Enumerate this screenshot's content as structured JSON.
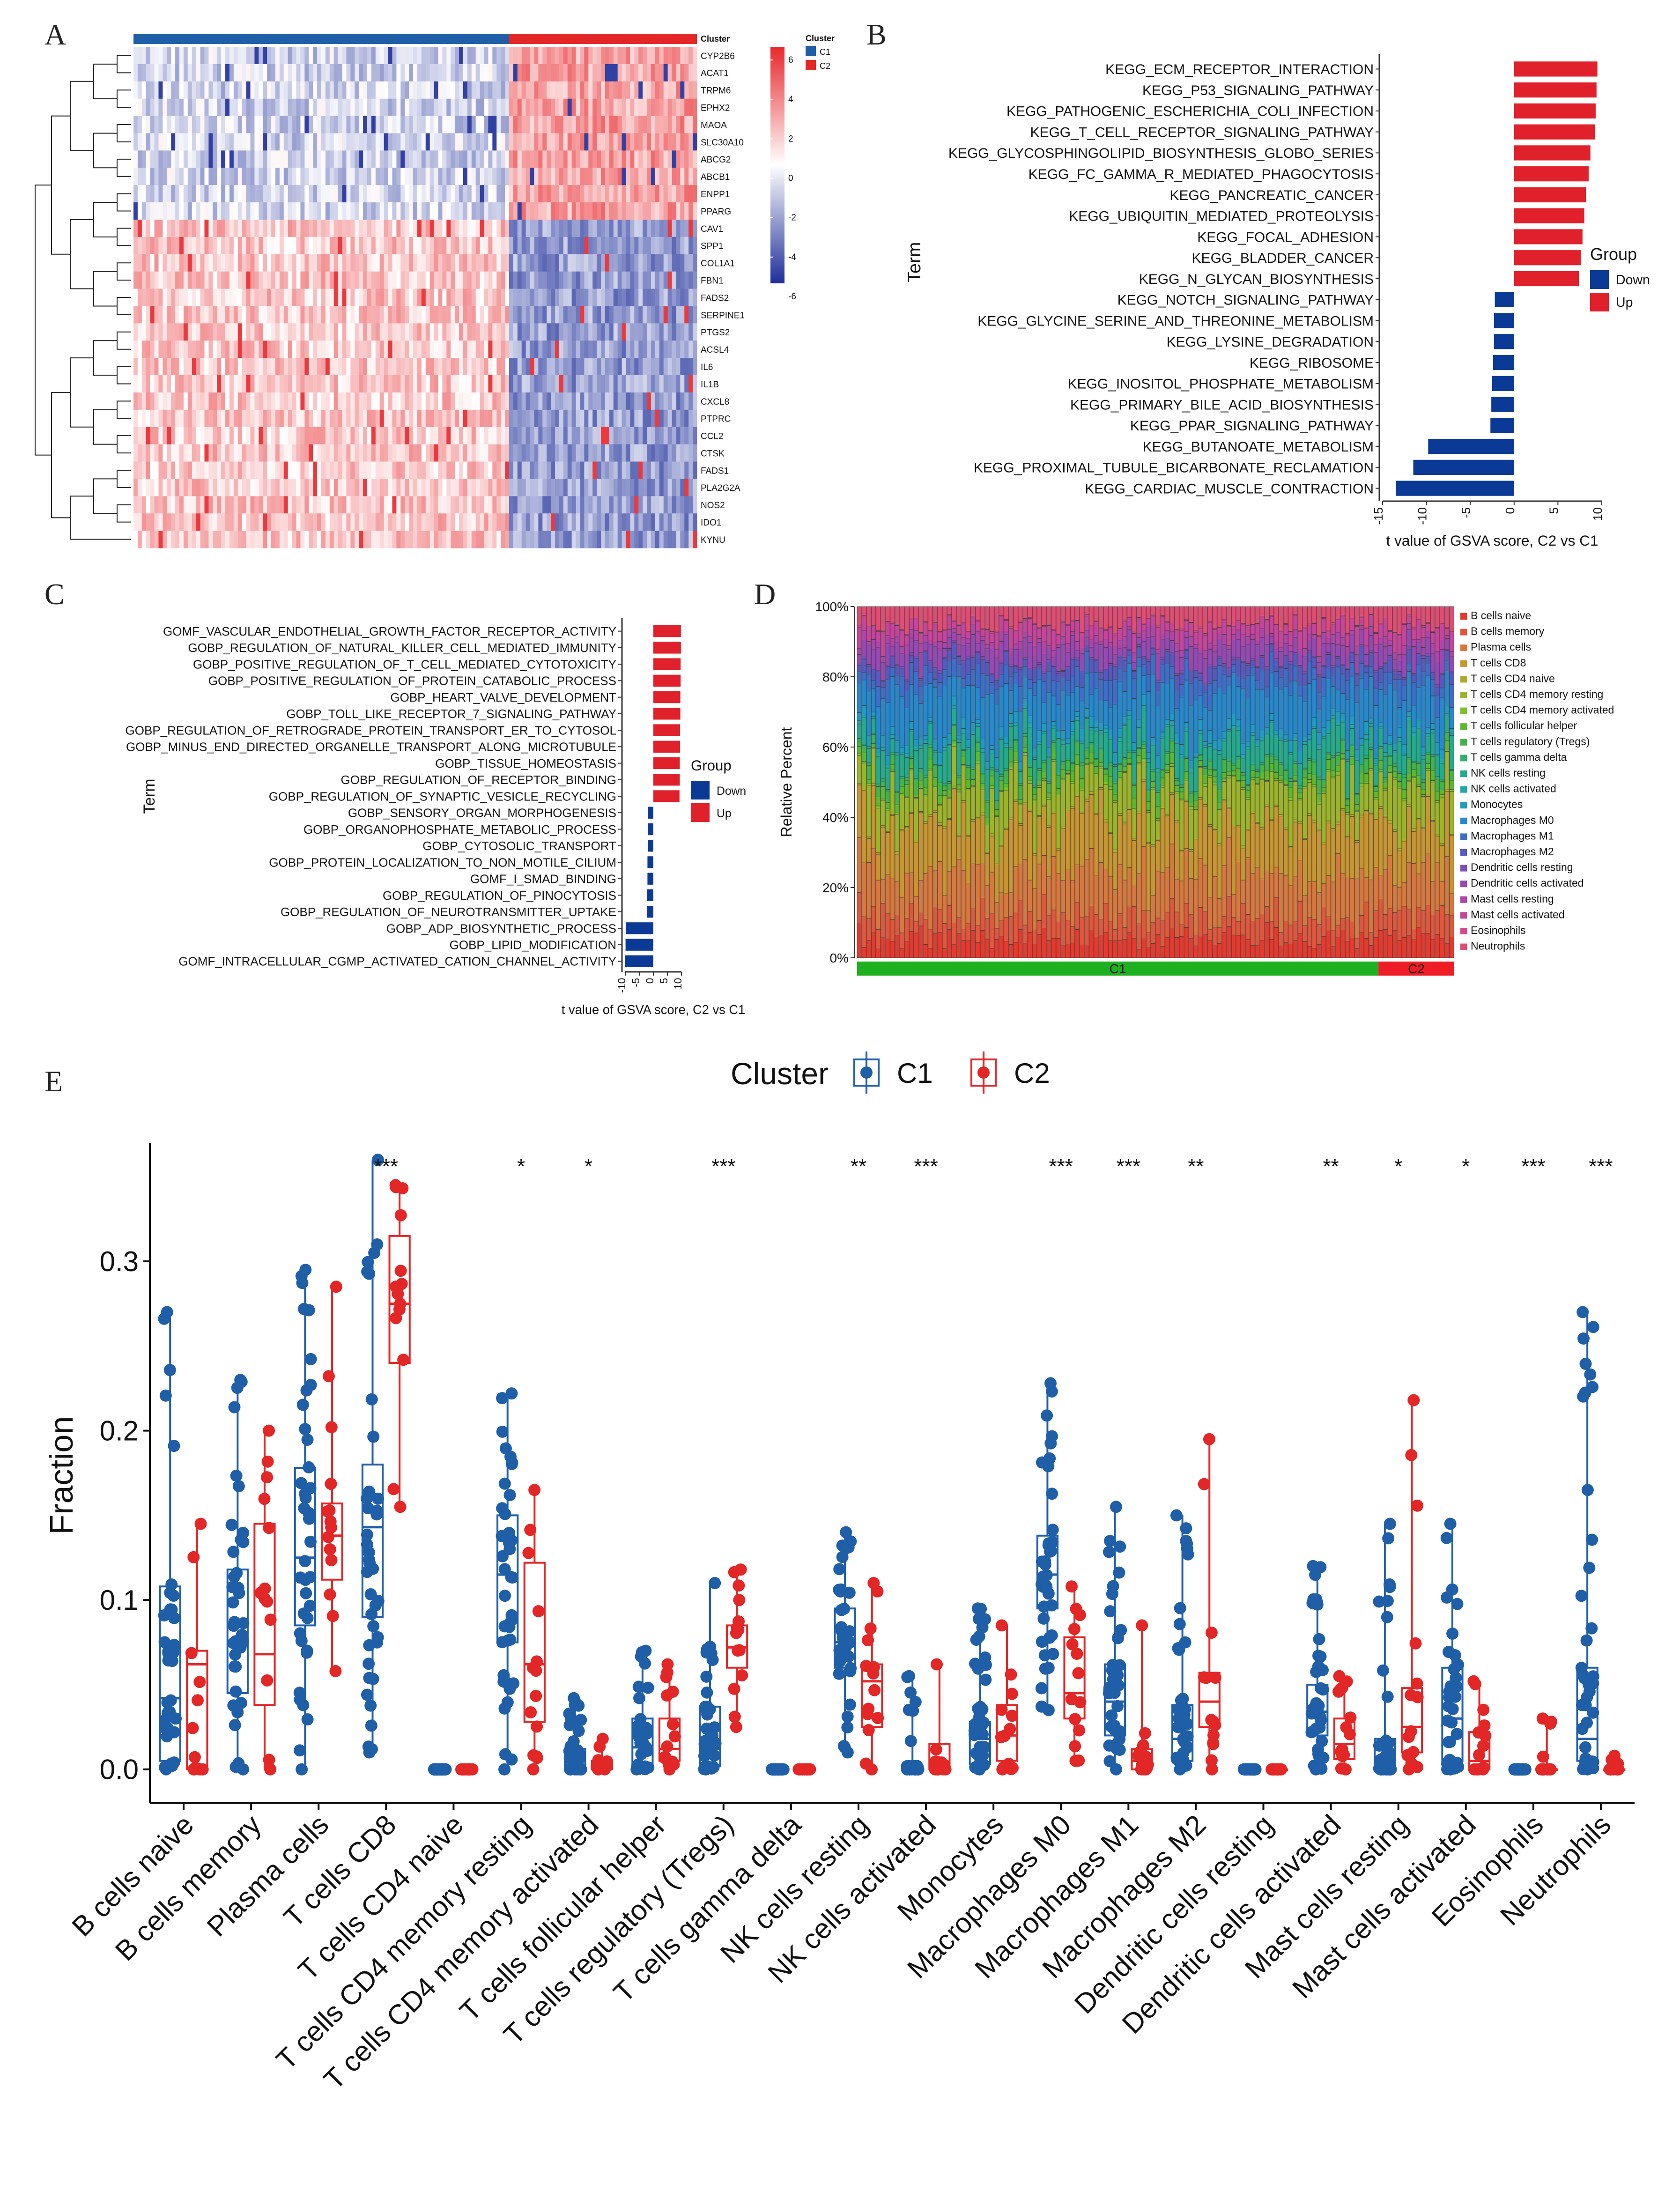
{
  "panel_labels": [
    "A",
    "B",
    "C",
    "D",
    "E"
  ],
  "colors": {
    "c1": "#1f5fa8",
    "c2": "#e32626",
    "down": "#0a3a96",
    "up": "#e0202a",
    "c1_bar": "#1eb01e",
    "c2_bar": "#ee1c24",
    "heat_low": "#1e2f9a",
    "heat_mid": "#ffffff",
    "heat_high": "#e8282c"
  },
  "chart_data": [
    {
      "type": "heatmap",
      "panel": "A",
      "rows": [
        "CYP2B6",
        "ACAT1",
        "TRPM6",
        "EPHX2",
        "MAOA",
        "SLC30A10",
        "ABCG2",
        "ABCB1",
        "ENPP1",
        "PPARG",
        "CAV1",
        "SPP1",
        "COL1A1",
        "FBN1",
        "FADS2",
        "SERPINE1",
        "PTGS2",
        "ACSL4",
        "IL6",
        "IL1B",
        "CXCL8",
        "PTPRC",
        "CCL2",
        "CTSK",
        "FADS1",
        "PLA2G2A",
        "NOS2",
        "IDO1",
        "KYNU"
      ],
      "annotation_title": "Cluster",
      "legend_title": "Cluster",
      "legend_entries": [
        "C1",
        "C2"
      ],
      "color_scale_ticks": [
        "6",
        "4",
        "2",
        "0",
        "-2",
        "-4",
        "-6"
      ],
      "n_c1": 90,
      "n_c2": 45
    },
    {
      "type": "bar",
      "panel": "B",
      "orientation": "horizontal",
      "ylabel": "Term",
      "xlabel": "t value of GSVA score, C2 vs C1",
      "x_ticks": [
        "-15",
        "-10",
        "-5",
        "0",
        "5",
        "10"
      ],
      "xlim": [
        -15,
        10
      ],
      "legend_title": "Group",
      "legend_entries": [
        "Down",
        "Up"
      ],
      "categories": [
        "KEGG_ECM_RECEPTOR_INTERACTION",
        "KEGG_P53_SIGNALING_PATHWAY",
        "KEGG_PATHOGENIC_ESCHERICHIA_COLI_INFECTION",
        "KEGG_T_CELL_RECEPTOR_SIGNALING_PATHWAY",
        "KEGG_GLYCOSPHINGOLIPID_BIOSYNTHESIS_GLOBO_SERIES",
        "KEGG_FC_GAMMA_R_MEDIATED_PHAGOCYTOSIS",
        "KEGG_PANCREATIC_CANCER",
        "KEGG_UBIQUITIN_MEDIATED_PROTEOLYSIS",
        "KEGG_FOCAL_ADHESION",
        "KEGG_BLADDER_CANCER",
        "KEGG_N_GLYCAN_BIOSYNTHESIS",
        "KEGG_NOTCH_SIGNALING_PATHWAY",
        "KEGG_GLYCINE_SERINE_AND_THREONINE_METABOLISM",
        "KEGG_LYSINE_DEGRADATION",
        "KEGG_RIBOSOME",
        "KEGG_INOSITOL_PHOSPHATE_METABOLISM",
        "KEGG_PRIMARY_BILE_ACID_BIOSYNTHESIS",
        "KEGG_PPAR_SIGNALING_PATHWAY",
        "KEGG_BUTANOATE_METABOLISM",
        "KEGG_PROXIMAL_TUBULE_BICARBONATE_RECLAMATION",
        "KEGG_CARDIAC_MUSCLE_CONTRACTION"
      ],
      "values": [
        9.5,
        9.4,
        9.3,
        9.2,
        8.7,
        8.5,
        8.2,
        8.0,
        7.8,
        7.6,
        7.4,
        -2.2,
        -2.3,
        -2.3,
        -2.4,
        -2.5,
        -2.6,
        -2.7,
        -9.8,
        -11.5,
        -13.5
      ]
    },
    {
      "type": "bar",
      "panel": "C",
      "orientation": "horizontal",
      "ylabel": "Term",
      "xlabel": "t value of GSVA score, C2 vs C1",
      "x_ticks": [
        "-10",
        "-5",
        "0",
        "5",
        "10"
      ],
      "xlim": [
        -10,
        10
      ],
      "legend_title": "Group",
      "legend_entries": [
        "Down",
        "Up"
      ],
      "categories": [
        "GOMF_VASCULAR_ENDOTHELIAL_GROWTH_FACTOR_RECEPTOR_ACTIVITY",
        "GOBP_REGULATION_OF_NATURAL_KILLER_CELL_MEDIATED_IMMUNITY",
        "GOBP_POSITIVE_REGULATION_OF_T_CELL_MEDIATED_CYTOTOXICITY",
        "GOBP_POSITIVE_REGULATION_OF_PROTEIN_CATABOLIC_PROCESS",
        "GOBP_HEART_VALVE_DEVELOPMENT",
        "GOBP_TOLL_LIKE_RECEPTOR_7_SIGNALING_PATHWAY",
        "GOBP_REGULATION_OF_RETROGRADE_PROTEIN_TRANSPORT_ER_TO_CYTOSOL",
        "GOBP_MINUS_END_DIRECTED_ORGANELLE_TRANSPORT_ALONG_MICROTUBULE",
        "GOBP_TISSUE_HOMEOSTASIS",
        "GOBP_REGULATION_OF_RECEPTOR_BINDING",
        "GOBP_REGULATION_OF_SYNAPTIC_VESICLE_RECYCLING",
        "GOBP_SENSORY_ORGAN_MORPHOGENESIS",
        "GOBP_ORGANOPHOSPHATE_METABOLIC_PROCESS",
        "GOBP_CYTOSOLIC_TRANSPORT",
        "GOBP_PROTEIN_LOCALIZATION_TO_NON_MOTILE_CILIUM",
        "GOMF_I_SMAD_BINDING",
        "GOBP_REGULATION_OF_PINOCYTOSIS",
        "GOBP_REGULATION_OF_NEUROTRANSMITTER_UPTAKE",
        "GOBP_ADP_BIOSYNTHETIC_PROCESS",
        "GOBP_LIPID_MODIFICATION",
        "GOMF_INTRACELLULAR_CGMP_ACTIVATED_CATION_CHANNEL_ACTIVITY"
      ],
      "values": [
        9.8,
        9.8,
        9.7,
        9.7,
        9.6,
        9.6,
        9.5,
        9.5,
        9.4,
        9.4,
        9.3,
        -2.0,
        -2.0,
        -2.0,
        -2.1,
        -2.1,
        -2.2,
        -2.2,
        -9.8,
        -9.9,
        -10.0
      ]
    },
    {
      "type": "bar",
      "panel": "D",
      "stacked": true,
      "ylabel": "Relative Percent",
      "y_ticks": [
        "0%",
        "20%",
        "40%",
        "60%",
        "80%",
        "100%"
      ],
      "ylim": [
        0,
        100
      ],
      "group_labels": [
        "C1",
        "C2"
      ],
      "n_c1": 110,
      "n_c2": 16,
      "legend": [
        "B cells naive",
        "B cells memory",
        "Plasma cells",
        "T cells CD8",
        "T cells CD4 naive",
        "T cells CD4 memory resting",
        "T cells CD4 memory activated",
        "T cells follicular helper",
        "T cells regulatory (Tregs)",
        "T cells gamma delta",
        "NK cells resting",
        "NK cells activated",
        "Monocytes",
        "Macrophages M0",
        "Macrophages M1",
        "Macrophages M2",
        "Dendritic cells resting",
        "Dendritic cells activated",
        "Mast cells resting",
        "Mast cells activated",
        "Eosinophils",
        "Neutrophils"
      ],
      "legend_colors": [
        "#e8392c",
        "#e2573b",
        "#d9783c",
        "#c9952f",
        "#b5a72a",
        "#9cb428",
        "#7ec12a",
        "#5cb92e",
        "#3fb54a",
        "#2fb06c",
        "#22ac8e",
        "#1fa8ad",
        "#1d9dc4",
        "#2589cf",
        "#3c6fcc",
        "#5659c2",
        "#7a4fbd",
        "#9748b6",
        "#b144ac",
        "#c9439d",
        "#d9468a",
        "#e24c73"
      ],
      "mean_fractions": [
        5.5,
        6,
        12,
        14,
        0.5,
        10,
        0.5,
        2,
        2.5,
        0.5,
        7,
        0.8,
        2.2,
        11,
        4.5,
        3,
        0.5,
        4.5,
        2,
        4,
        0.3,
        5
      ]
    },
    {
      "type": "box",
      "panel": "E",
      "ylabel": "Fraction",
      "y_ticks": [
        "0.0",
        "0.1",
        "0.2",
        "0.3"
      ],
      "ylim": [
        -0.02,
        0.37
      ],
      "legend_title": "Cluster",
      "legend_entries": [
        "C1",
        "C2"
      ],
      "categories": [
        "B cells naive",
        "B cells memory",
        "Plasma cells",
        "T cells CD8",
        "T cells CD4 naive",
        "T cells CD4 memory resting",
        "T cells CD4 memory activated",
        "T cells follicular helper",
        "T cells regulatory (Tregs)",
        "T cells gamma delta",
        "NK cells resting",
        "NK cells activated",
        "Monocytes",
        "Macrophages M0",
        "Macrophages M1",
        "Macrophages M2",
        "Dendritic cells resting",
        "Dendritic cells activated",
        "Mast cells resting",
        "Mast cells activated",
        "Eosinophils",
        "Neutrophils"
      ],
      "significance": [
        "",
        "",
        "",
        "***",
        "",
        "*",
        "*",
        "",
        "***",
        "",
        "**",
        "***",
        "",
        "***",
        "***",
        "**",
        "",
        "**",
        "*",
        "*",
        "***",
        "***"
      ],
      "c1_box": [
        [
          0.0,
          0.005,
          0.042,
          0.108,
          0.27
        ],
        [
          0.0,
          0.045,
          0.075,
          0.118,
          0.23
        ],
        [
          0.0,
          0.085,
          0.125,
          0.178,
          0.295
        ],
        [
          0.01,
          0.09,
          0.143,
          0.18,
          0.36
        ],
        [
          0,
          0,
          0,
          0,
          0
        ],
        [
          0.0,
          0.075,
          0.115,
          0.15,
          0.222
        ],
        [
          0.0,
          0.0,
          0.0,
          0.012,
          0.042
        ],
        [
          0.0,
          0.002,
          0.013,
          0.03,
          0.07
        ],
        [
          0.0,
          0.002,
          0.012,
          0.037,
          0.11
        ],
        [
          0,
          0,
          0,
          0,
          0
        ],
        [
          0.01,
          0.06,
          0.075,
          0.095,
          0.14
        ],
        [
          0.0,
          0.0,
          0.0,
          0.002,
          0.055
        ],
        [
          0.0,
          0.003,
          0.018,
          0.028,
          0.095
        ],
        [
          0.035,
          0.095,
          0.115,
          0.138,
          0.228
        ],
        [
          0.0,
          0.02,
          0.04,
          0.062,
          0.155
        ],
        [
          0.0,
          0.005,
          0.018,
          0.038,
          0.15
        ],
        [
          0,
          0,
          0,
          0,
          0
        ],
        [
          0.0,
          0.02,
          0.034,
          0.05,
          0.12
        ],
        [
          0.0,
          0.0,
          0.002,
          0.018,
          0.145
        ],
        [
          0.0,
          0.005,
          0.03,
          0.06,
          0.145
        ],
        [
          0,
          0,
          0,
          0,
          0
        ],
        [
          0.0,
          0.005,
          0.018,
          0.06,
          0.27
        ]
      ],
      "c2_box": [
        [
          0.0,
          0.0,
          0.062,
          0.07,
          0.145
        ],
        [
          0.0,
          0.038,
          0.068,
          0.145,
          0.2
        ],
        [
          0.058,
          0.112,
          0.138,
          0.157,
          0.285
        ],
        [
          0.155,
          0.24,
          0.275,
          0.315,
          0.345
        ],
        [
          0,
          0,
          0,
          0,
          0
        ],
        [
          0.0,
          0.028,
          0.062,
          0.122,
          0.165
        ],
        [
          0.0,
          0.0,
          0.0,
          0.005,
          0.018
        ],
        [
          0.0,
          0.005,
          0.012,
          0.03,
          0.062
        ],
        [
          0.025,
          0.06,
          0.072,
          0.085,
          0.118
        ],
        [
          0,
          0,
          0,
          0,
          0
        ],
        [
          0.0,
          0.025,
          0.052,
          0.062,
          0.11
        ],
        [
          0.0,
          0.0,
          0.0,
          0.015,
          0.062
        ],
        [
          0.0,
          0.005,
          0.02,
          0.038,
          0.085
        ],
        [
          0.005,
          0.03,
          0.045,
          0.078,
          0.108
        ],
        [
          0.0,
          0.0,
          0.005,
          0.012,
          0.085
        ],
        [
          0.0,
          0.025,
          0.04,
          0.057,
          0.195
        ],
        [
          0,
          0,
          0,
          0,
          0
        ],
        [
          0.0,
          0.006,
          0.015,
          0.03,
          0.055
        ],
        [
          0.0,
          0.01,
          0.025,
          0.048,
          0.218
        ],
        [
          0.0,
          0.0,
          0.005,
          0.022,
          0.052
        ],
        [
          0,
          0,
          0,
          0,
          0.03
        ],
        [
          0,
          0,
          0,
          0,
          0.008
        ]
      ]
    }
  ]
}
